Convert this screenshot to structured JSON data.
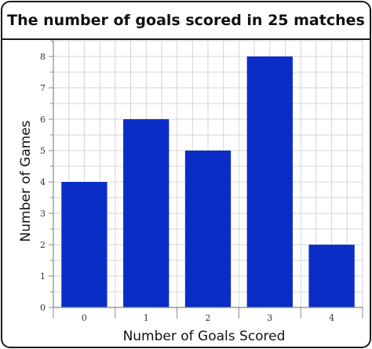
{
  "chart_data": {
    "type": "bar",
    "title": "The number of goals scored in 25 matches",
    "xlabel": "Number of Goals Scored",
    "ylabel": "Number of Games",
    "categories": [
      "0",
      "1",
      "2",
      "3",
      "4"
    ],
    "values": [
      4,
      6,
      5,
      8,
      2
    ],
    "ylim": [
      0,
      8.5
    ],
    "yticks": [
      "0",
      "1",
      "2",
      "3",
      "4",
      "5",
      "6",
      "7",
      "8"
    ],
    "grid": true,
    "bar_color": "#0a2dc8"
  }
}
